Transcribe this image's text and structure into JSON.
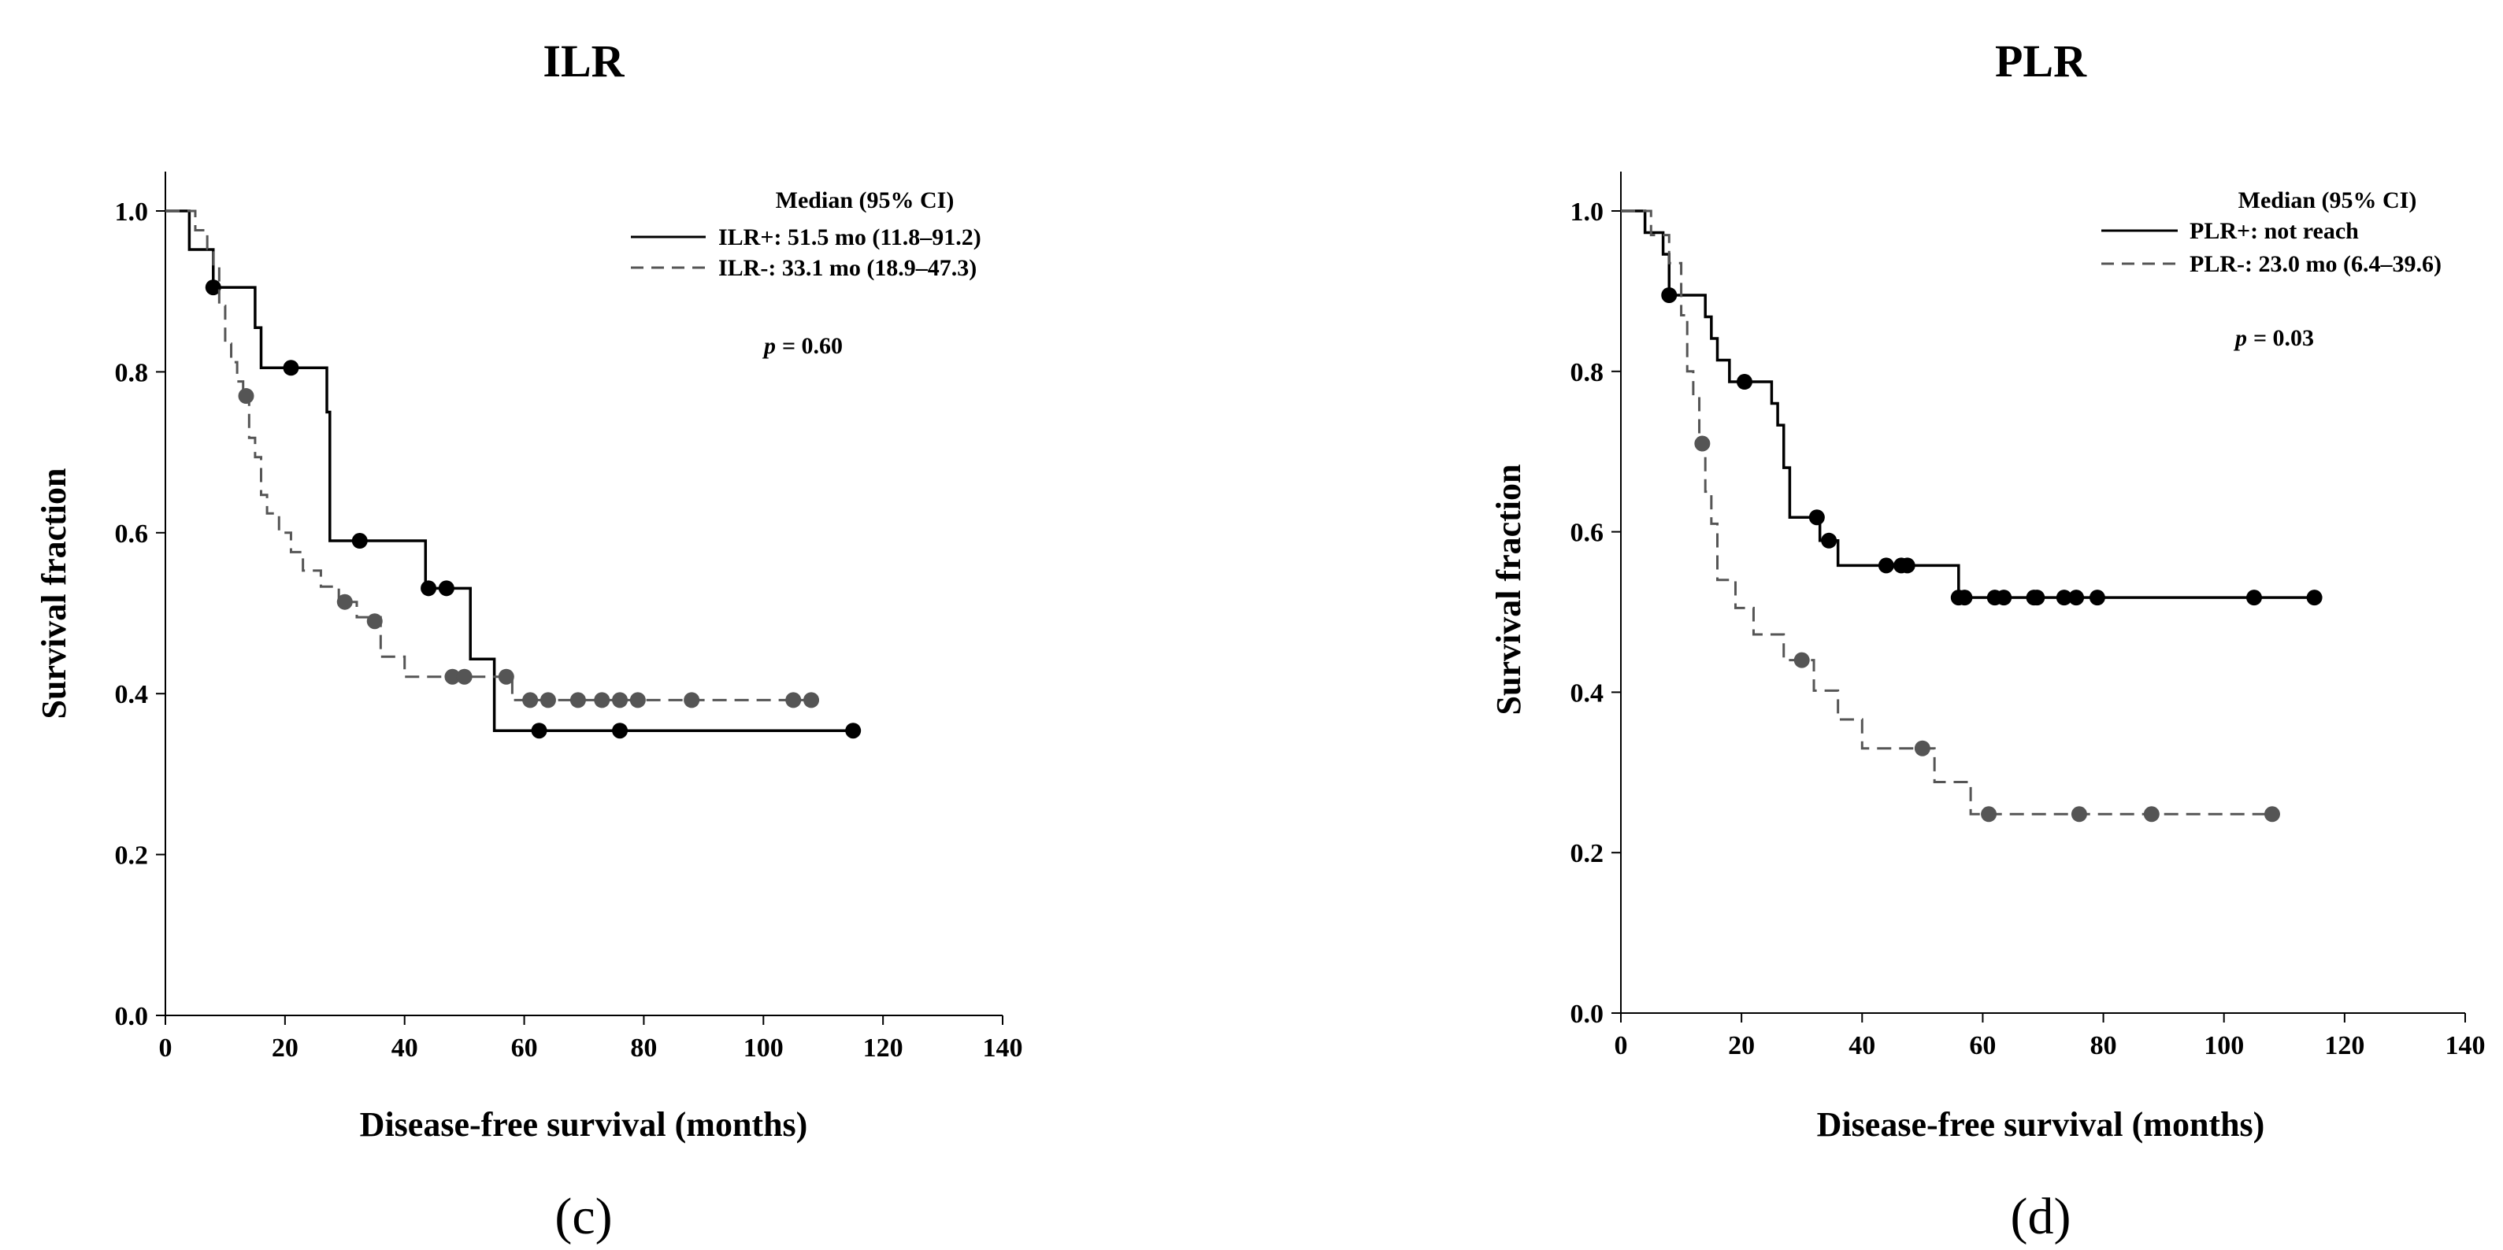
{
  "chart_data": [
    {
      "type": "line",
      "subtype": "kaplan-meier",
      "title": "ILR",
      "panel_label": "(c)",
      "xlabel": "Disease-free survival (months)",
      "ylabel": "Survival fraction",
      "xlim": [
        0,
        140
      ],
      "ylim": [
        0,
        1.0
      ],
      "xticks": [
        "0",
        "20",
        "40",
        "60",
        "80",
        "100",
        "120",
        "140"
      ],
      "yticks": [
        "0.0",
        "0.2",
        "0.4",
        "0.6",
        "0.8",
        "1.0"
      ],
      "legend_title": "Median (95% CI)",
      "p_label": "p",
      "p_value": "= 0.60",
      "series": [
        {
          "name": "ILR+: 51.5 mo (11.8–91.2)",
          "color": "#000000",
          "dash": "solid",
          "steps": [
            [
              0,
              1.0
            ],
            [
              4,
              0.952
            ],
            [
              8,
              0.905
            ],
            [
              15,
              0.855
            ],
            [
              16,
              0.805
            ],
            [
              27,
              0.75
            ],
            [
              27.5,
              0.59
            ],
            [
              43.5,
              0.531
            ],
            [
              51,
              0.443
            ],
            [
              55,
              0.354
            ],
            [
              115,
              0.354
            ]
          ],
          "censors": [
            [
              8,
              0.905
            ],
            [
              21,
              0.805
            ],
            [
              32.5,
              0.59
            ],
            [
              44,
              0.531
            ],
            [
              47,
              0.531
            ],
            [
              62.5,
              0.354
            ],
            [
              76,
              0.354
            ],
            [
              115,
              0.354
            ]
          ]
        },
        {
          "name": "ILR-: 33.1 mo (18.9–47.3)",
          "color": "#555555",
          "dash": "dashed",
          "steps": [
            [
              0,
              1.0
            ],
            [
              5,
              0.976
            ],
            [
              7,
              0.953
            ],
            [
              8,
              0.93
            ],
            [
              9,
              0.882
            ],
            [
              10,
              0.835
            ],
            [
              11,
              0.812
            ],
            [
              12,
              0.788
            ],
            [
              13,
              0.765
            ],
            [
              14,
              0.718
            ],
            [
              15,
              0.694
            ],
            [
              16,
              0.647
            ],
            [
              17,
              0.624
            ],
            [
              19,
              0.6
            ],
            [
              21,
              0.576
            ],
            [
              23,
              0.553
            ],
            [
              26,
              0.533
            ],
            [
              29,
              0.514
            ],
            [
              32,
              0.495
            ],
            [
              36,
              0.446
            ],
            [
              40,
              0.421
            ],
            [
              58,
              0.392
            ],
            [
              108,
              0.392
            ]
          ],
          "censors": [
            [
              13.5,
              0.77
            ],
            [
              30,
              0.514
            ],
            [
              35,
              0.49
            ],
            [
              48,
              0.421
            ],
            [
              50,
              0.421
            ],
            [
              57,
              0.421
            ],
            [
              61,
              0.392
            ],
            [
              64,
              0.392
            ],
            [
              69,
              0.392
            ],
            [
              73,
              0.392
            ],
            [
              76,
              0.392
            ],
            [
              79,
              0.392
            ],
            [
              88,
              0.392
            ],
            [
              105,
              0.392
            ],
            [
              108,
              0.392
            ]
          ]
        }
      ]
    },
    {
      "type": "line",
      "subtype": "kaplan-meier",
      "title": "PLR",
      "panel_label": "(d)",
      "xlabel": "Disease-free survival (months)",
      "ylabel": "Survival fraction",
      "xlim": [
        0,
        140
      ],
      "ylim": [
        0,
        1.0
      ],
      "xticks": [
        "0",
        "20",
        "40",
        "60",
        "80",
        "100",
        "120",
        "140"
      ],
      "yticks": [
        "0.0",
        "0.2",
        "0.4",
        "0.6",
        "0.8",
        "1.0"
      ],
      "legend_title": "Median (95% CI)",
      "p_label": "p",
      "p_value": "= 0.03",
      "series": [
        {
          "name": "PLR+: not reach",
          "color": "#000000",
          "dash": "solid",
          "steps": [
            [
              0,
              1.0
            ],
            [
              4,
              0.973
            ],
            [
              7,
              0.946
            ],
            [
              8,
              0.895
            ],
            [
              14,
              0.868
            ],
            [
              15,
              0.841
            ],
            [
              16,
              0.814
            ],
            [
              18,
              0.787
            ],
            [
              25,
              0.76
            ],
            [
              26,
              0.733
            ],
            [
              27,
              0.68
            ],
            [
              28,
              0.618
            ],
            [
              33,
              0.589
            ],
            [
              36,
              0.558
            ],
            [
              56,
              0.518
            ],
            [
              115,
              0.518
            ]
          ],
          "censors": [
            [
              8,
              0.895
            ],
            [
              20.5,
              0.787
            ],
            [
              32.5,
              0.618
            ],
            [
              34.5,
              0.589
            ],
            [
              44,
              0.558
            ],
            [
              46.5,
              0.558
            ],
            [
              47.5,
              0.558
            ],
            [
              56,
              0.518
            ],
            [
              57,
              0.518
            ],
            [
              62,
              0.518
            ],
            [
              63.5,
              0.518
            ],
            [
              68.5,
              0.518
            ],
            [
              69,
              0.518
            ],
            [
              73.5,
              0.518
            ],
            [
              75.5,
              0.518
            ],
            [
              79,
              0.518
            ],
            [
              105,
              0.518
            ],
            [
              115,
              0.518
            ]
          ]
        },
        {
          "name": "PLR-: 23.0 mo (6.4–39.6)",
          "color": "#555555",
          "dash": "dashed",
          "steps": [
            [
              0,
              1.0
            ],
            [
              5,
              0.97
            ],
            [
              8,
              0.935
            ],
            [
              10,
              0.87
            ],
            [
              11,
              0.8
            ],
            [
              12,
              0.77
            ],
            [
              13,
              0.71
            ],
            [
              14,
              0.65
            ],
            [
              15,
              0.61
            ],
            [
              16,
              0.54
            ],
            [
              19,
              0.505
            ],
            [
              22,
              0.472
            ],
            [
              27,
              0.44
            ],
            [
              32,
              0.402
            ],
            [
              36,
              0.366
            ],
            [
              40,
              0.33
            ],
            [
              46,
              0.33
            ],
            [
              52,
              0.288
            ],
            [
              58,
              0.248
            ],
            [
              108,
              0.248
            ]
          ],
          "censors": [
            [
              13.5,
              0.71
            ],
            [
              30,
              0.44
            ],
            [
              50,
              0.33
            ],
            [
              61,
              0.248
            ],
            [
              76,
              0.248
            ],
            [
              88,
              0.248
            ],
            [
              108,
              0.248
            ]
          ]
        }
      ]
    }
  ]
}
